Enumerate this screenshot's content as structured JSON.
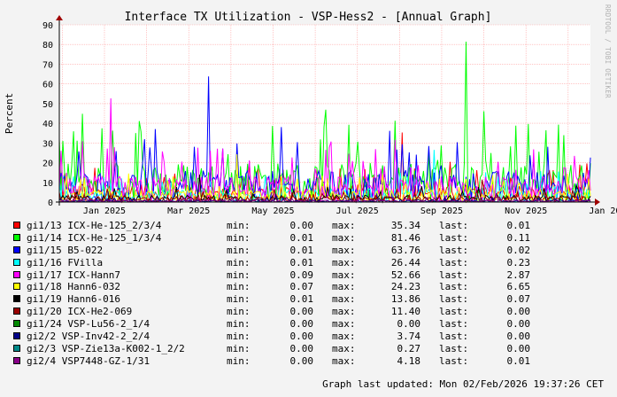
{
  "chart_data": {
    "type": "line",
    "title": "Interface TX Utilization - VSP-Hess2 - [Annual Graph]",
    "ylabel": "Percent",
    "ylim": [
      0,
      90
    ],
    "yticks": [
      0,
      10,
      20,
      30,
      40,
      50,
      60,
      70,
      80,
      90
    ],
    "xticks": [
      "Jan 2025",
      "Mar 2025",
      "May 2025",
      "Jul 2025",
      "Sep 2025",
      "Nov 2025",
      "Jan 2026"
    ],
    "grid": true,
    "series": [
      {
        "name": "gi1/13 ICX-He-125_2/3/4",
        "color": "#ff0000",
        "min": "0.00",
        "max": "35.34",
        "last": "0.01"
      },
      {
        "name": "gi1/14 ICX-He-125_1/3/4",
        "color": "#00ff00",
        "min": "0.01",
        "max": "81.46",
        "last": "0.11"
      },
      {
        "name": "gi1/15 B5-022",
        "color": "#0000ff",
        "min": "0.01",
        "max": "63.76",
        "last": "0.02"
      },
      {
        "name": "gi1/16 FVilla",
        "color": "#00ffff",
        "min": "0.01",
        "max": "26.44",
        "last": "0.23"
      },
      {
        "name": "gi1/17 ICX-Hann7",
        "color": "#ff00ff",
        "min": "0.09",
        "max": "52.66",
        "last": "2.87"
      },
      {
        "name": "gi1/18 Hann6-032",
        "color": "#ffff00",
        "min": "0.07",
        "max": "24.23",
        "last": "6.65"
      },
      {
        "name": "gi1/19 Hann6-016",
        "color": "#000000",
        "min": "0.01",
        "max": "13.86",
        "last": "0.07"
      },
      {
        "name": "gi1/20 ICX-He2-069",
        "color": "#990000",
        "min": "0.00",
        "max": "11.40",
        "last": "0.00"
      },
      {
        "name": "gi1/24 VSP-Lu56-2_1/4",
        "color": "#008800",
        "min": "0.00",
        "max": "0.00",
        "last": "0.00"
      },
      {
        "name": "gi2/2 VSP-Inv42-2_2/4",
        "color": "#000088",
        "min": "0.00",
        "max": "3.74",
        "last": "0.00"
      },
      {
        "name": "gi2/3 VSP-Zie13a-K002-1_2/2",
        "color": "#008888",
        "min": "0.00",
        "max": "0.27",
        "last": "0.00"
      },
      {
        "name": "gi2/4 VSP7448-GZ-1/31",
        "color": "#880088",
        "min": "0.00",
        "max": "4.18",
        "last": "0.01"
      }
    ]
  },
  "legend_labels": {
    "min": "min:",
    "max": "max:",
    "last": "last:"
  },
  "footer": "Graph last updated: Mon 02/Feb/2026 19:37:26 CET",
  "watermark": "RRDTOOL / TOBI OETIKER"
}
